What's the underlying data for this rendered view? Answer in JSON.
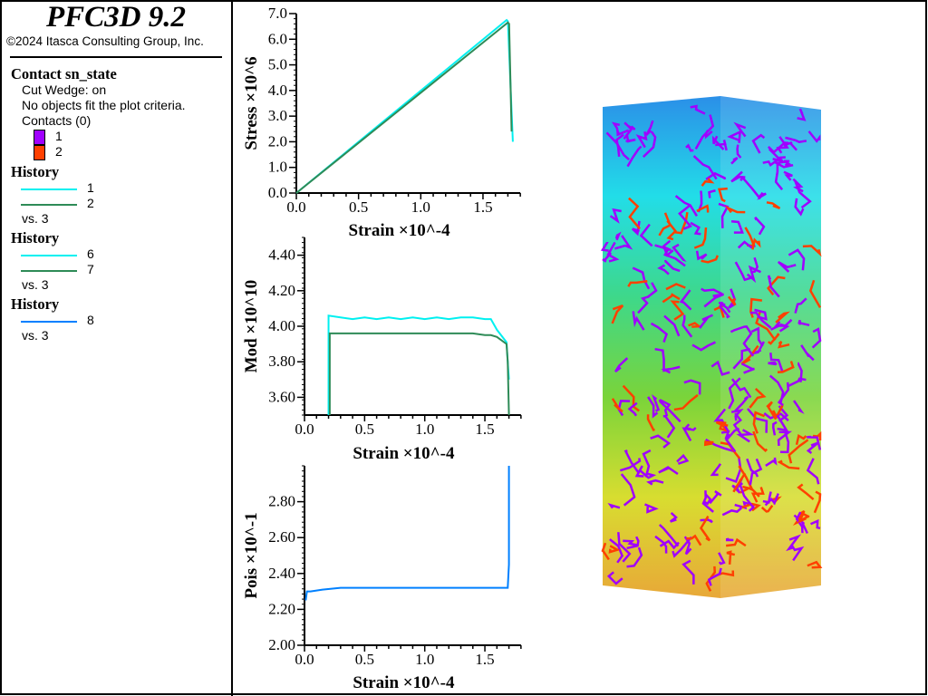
{
  "header": {
    "title": "PFC3D 9.2",
    "copyright": "©2024 Itasca Consulting Group, Inc."
  },
  "legend": {
    "contact_title": "Contact sn_state",
    "cut_wedge": "Cut Wedge: on",
    "no_objects": "No objects fit the plot criteria.",
    "contacts": "Contacts (0)",
    "contact_states": [
      {
        "label": "1",
        "color": "#a000ff"
      },
      {
        "label": "2",
        "color": "#ff4000"
      }
    ],
    "histories": [
      {
        "title": "History",
        "items": [
          {
            "label": "1",
            "color": "#00f0f0"
          },
          {
            "label": "2",
            "color": "#2e8b57"
          }
        ],
        "vs": "vs. 3"
      },
      {
        "title": "History",
        "items": [
          {
            "label": "6",
            "color": "#00f0f0"
          },
          {
            "label": "7",
            "color": "#2e8b57"
          }
        ],
        "vs": "vs. 3"
      },
      {
        "title": "History",
        "items": [
          {
            "label": "8",
            "color": "#0080ff"
          }
        ],
        "vs": "vs. 3"
      }
    ]
  },
  "chart_data": [
    {
      "type": "line",
      "ylabel": "Stress ×10^6",
      "xlabel": "Strain ×10^-4",
      "xlim": [
        0,
        1.8
      ],
      "ylim": [
        0,
        7
      ],
      "xticks": [
        "0.0",
        "0.5",
        "1.0",
        "1.5"
      ],
      "yticks": [
        "0.0",
        "1.0",
        "2.0",
        "3.0",
        "4.0",
        "5.0",
        "6.0",
        "7.0"
      ],
      "series": [
        {
          "name": "1",
          "color": "#00f0f0",
          "x": [
            0,
            1.69,
            1.7,
            1.74
          ],
          "y": [
            0,
            6.75,
            6.7,
            2.0
          ]
        },
        {
          "name": "2",
          "color": "#2e8b57",
          "x": [
            0,
            1.7,
            1.71,
            1.73
          ],
          "y": [
            0,
            6.65,
            6.6,
            2.4
          ]
        }
      ]
    },
    {
      "type": "line",
      "ylabel": "Mod ×10^10",
      "xlabel": "Strain ×10^-4",
      "xlim": [
        0,
        1.8
      ],
      "ylim": [
        3.5,
        4.5
      ],
      "xticks": [
        "0.0",
        "0.5",
        "1.0",
        "1.5"
      ],
      "yticks": [
        "3.60",
        "3.80",
        "4.00",
        "4.20",
        "4.40"
      ],
      "series": [
        {
          "name": "6",
          "color": "#00f0f0",
          "x": [
            0.2,
            0.2,
            0.3,
            0.4,
            0.5,
            0.6,
            0.7,
            0.8,
            0.9,
            1.0,
            1.1,
            1.2,
            1.3,
            1.4,
            1.5,
            1.55,
            1.6,
            1.68,
            1.69,
            1.7
          ],
          "y": [
            3.5,
            4.06,
            4.05,
            4.04,
            4.05,
            4.04,
            4.05,
            4.04,
            4.05,
            4.04,
            4.05,
            4.04,
            4.05,
            4.05,
            4.04,
            4.04,
            3.98,
            3.91,
            3.8,
            3.7
          ]
        },
        {
          "name": "7",
          "color": "#2e8b57",
          "x": [
            0.21,
            0.21,
            0.3,
            0.4,
            0.5,
            0.6,
            0.7,
            0.8,
            0.9,
            1.0,
            1.1,
            1.2,
            1.3,
            1.4,
            1.5,
            1.55,
            1.6,
            1.68,
            1.69,
            1.7
          ],
          "y": [
            3.5,
            3.96,
            3.96,
            3.96,
            3.96,
            3.96,
            3.96,
            3.96,
            3.96,
            3.96,
            3.96,
            3.96,
            3.96,
            3.96,
            3.95,
            3.95,
            3.94,
            3.9,
            3.8,
            3.5
          ]
        }
      ]
    },
    {
      "type": "line",
      "ylabel": "Pois ×10^-1",
      "xlabel": "Strain ×10^-4",
      "xlim": [
        0,
        1.8
      ],
      "ylim": [
        2.0,
        3.0
      ],
      "xticks": [
        "0.0",
        "0.5",
        "1.0",
        "1.5"
      ],
      "yticks": [
        "2.00",
        "2.20",
        "2.40",
        "2.60",
        "2.80"
      ],
      "series": [
        {
          "name": "8",
          "color": "#0080ff",
          "x": [
            0.01,
            0.02,
            0.05,
            0.15,
            0.3,
            0.5,
            1.0,
            1.5,
            1.68,
            1.69,
            1.7,
            1.7
          ],
          "y": [
            2.25,
            2.3,
            2.3,
            2.31,
            2.32,
            2.32,
            2.32,
            2.32,
            2.32,
            2.32,
            2.45,
            3.0
          ]
        }
      ]
    }
  ],
  "model_view": {
    "colors": [
      "#2b8fe8",
      "#22dde8",
      "#3ed88a",
      "#7ad43a",
      "#d8dd30",
      "#e8a838"
    ]
  }
}
